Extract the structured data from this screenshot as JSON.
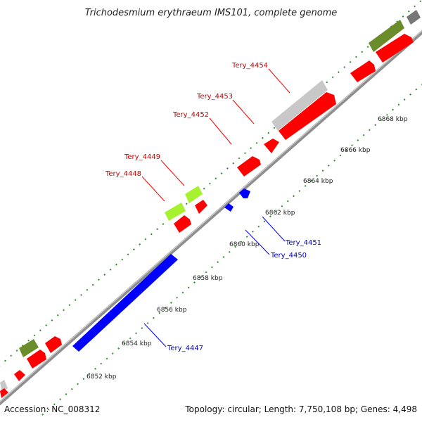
{
  "title": "Trichodesmium erythraeum IMS101, complete genome",
  "accession": "Accession: NC_008312",
  "summary": "Topology: circular; Length: 7,750,108 bp; Genes: 4,498",
  "colors": {
    "backbone": "#8e8e8e",
    "forward_cds": "#ff0000",
    "reverse_cds": "#0000ff",
    "rna_light": "#a6f230",
    "rna_dark": "#6b8c2a",
    "other": "#c8c8c8",
    "tick": "#2e8b2e",
    "label_red": "#cc0000",
    "label_blue": "#0000cc"
  },
  "kbp_ticks": [
    {
      "label": "6852 kbp"
    },
    {
      "label": "6854 kbp"
    },
    {
      "label": "6856 kbp"
    },
    {
      "label": "6858 kbp"
    },
    {
      "label": "6860 kbp"
    },
    {
      "label": "6862 kbp"
    },
    {
      "label": "6864 kbp"
    },
    {
      "label": "6866 kbp"
    },
    {
      "label": "6868 kbp"
    }
  ],
  "gene_labels": [
    {
      "text": "Tery_4454",
      "strand": "forward"
    },
    {
      "text": "Tery_4453",
      "strand": "forward"
    },
    {
      "text": "Tery_4452",
      "strand": "forward"
    },
    {
      "text": "Tery_4449",
      "strand": "forward"
    },
    {
      "text": "Tery_4448",
      "strand": "forward"
    },
    {
      "text": "Tery_4451",
      "strand": "reverse"
    },
    {
      "text": "Tery_4450",
      "strand": "reverse"
    },
    {
      "text": "Tery_4447",
      "strand": "reverse"
    }
  ]
}
